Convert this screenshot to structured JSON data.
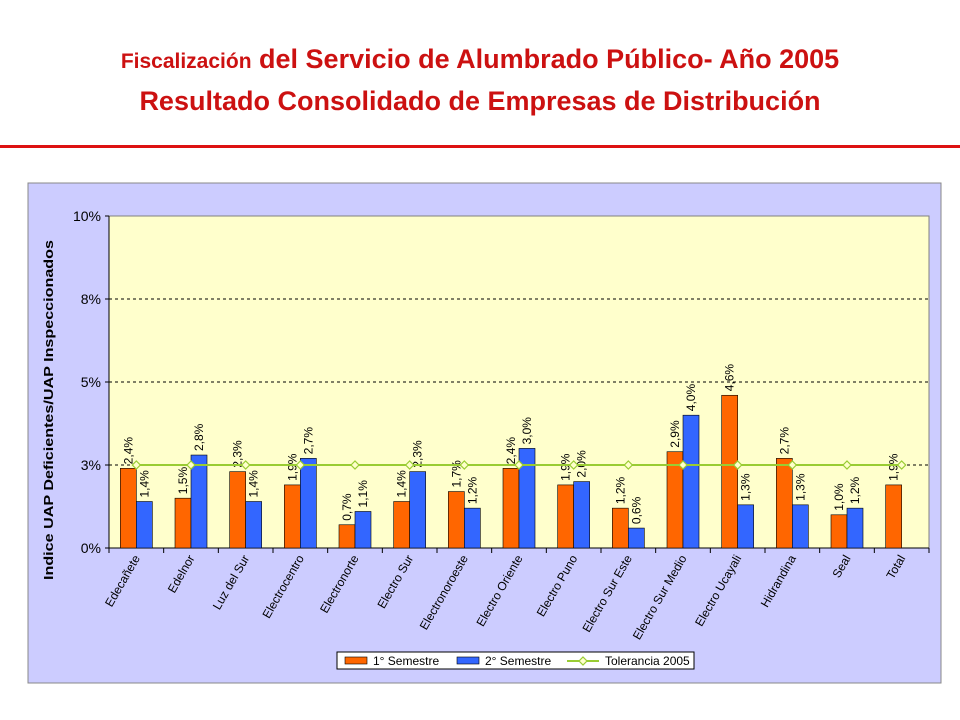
{
  "header": {
    "title_line1_small": "Fiscalización",
    "title_line1_rest": " del Servicio de Alumbrado Público- Año 2005",
    "title_line2": "Resultado Consolidado de Empresas de Distribución"
  },
  "colors": {
    "semester1": "#ff6600",
    "semester2": "#3366ff",
    "tolerance": "#99cc33",
    "plot_bg": "#ffffcc",
    "chart_bg": "#ccccff",
    "title": "#cc1111"
  },
  "chart_data": {
    "type": "bar",
    "ylabel": "Indice  UAP Deficientes/UAP Inspeccionados",
    "ylim": [
      0,
      10
    ],
    "yticks": [
      0,
      2.5,
      5,
      7.5,
      10
    ],
    "ytick_labels": [
      "0%",
      "3%",
      "5%",
      "8%",
      "10%"
    ],
    "grid": true,
    "legend_position": "bottom",
    "categories": [
      "Edecañete",
      "Edelnor",
      "Luz del Sur",
      "Electrocentro",
      "Electronorte",
      "Electro Sur",
      "Electronoroeste",
      "Electro Oriente",
      "Electro Puno",
      "Electro Sur Este",
      "Electro Sur Medio",
      "Electro Ucayali",
      "Hidrandina",
      "Seal",
      "Total"
    ],
    "series": [
      {
        "name": "1° Semestre",
        "type": "bar",
        "values": [
          2.4,
          1.5,
          2.3,
          1.9,
          0.7,
          1.4,
          1.7,
          2.4,
          1.9,
          1.2,
          2.9,
          4.6,
          2.7,
          1.0,
          1.9
        ],
        "labels": [
          "2,4%",
          "1,5%",
          "2,3%",
          "1,9%",
          "0,7%",
          "1,4%",
          "1,7%",
          "2,4%",
          "1,9%",
          "1,2%",
          "2,9%",
          "4,6%",
          "2,7%",
          "1,0%",
          "1,9%"
        ]
      },
      {
        "name": "2° Semestre",
        "type": "bar",
        "values": [
          1.4,
          2.8,
          1.4,
          2.7,
          1.1,
          2.3,
          1.2,
          3.0,
          2.0,
          0.6,
          4.0,
          1.3,
          1.3,
          1.2,
          null
        ],
        "labels": [
          "1,4%",
          "2,8%",
          "1,4%",
          "2,7%",
          "1,1%",
          "2,3%",
          "1,2%",
          "3,0%",
          "2,0%",
          "0,6%",
          "4,0%",
          "1,3%",
          "1,3%",
          "1,2%",
          null
        ]
      },
      {
        "name": "Tolerancia 2005",
        "type": "line",
        "values": [
          2.5,
          2.5,
          2.5,
          2.5,
          2.5,
          2.5,
          2.5,
          2.5,
          2.5,
          2.5,
          2.5,
          2.5,
          2.5,
          2.5,
          2.5
        ]
      }
    ]
  }
}
